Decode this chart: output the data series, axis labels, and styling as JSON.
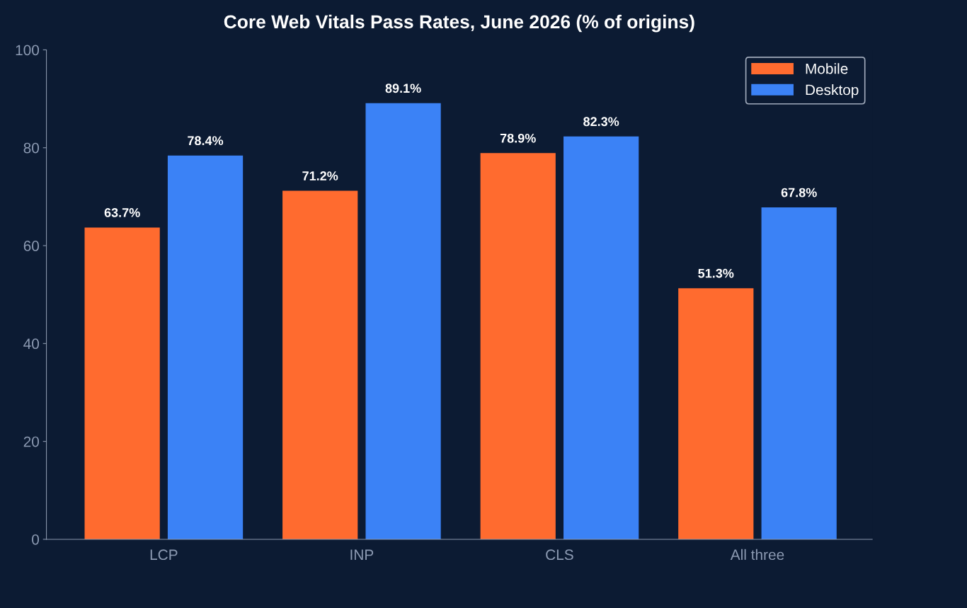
{
  "chart_data": {
    "type": "bar",
    "title": "Core Web Vitals Pass Rates, June 2026 (% of origins)",
    "categories": [
      "LCP",
      "INP",
      "CLS",
      "All three"
    ],
    "series": [
      {
        "name": "Mobile",
        "color": "#ff6b2f",
        "values": [
          63.7,
          71.2,
          78.9,
          51.3
        ],
        "value_labels": [
          "63.7%",
          "71.2%",
          "78.9%",
          "51.3%"
        ]
      },
      {
        "name": "Desktop",
        "color": "#3b82f6",
        "values": [
          78.4,
          89.1,
          82.3,
          67.8
        ],
        "value_labels": [
          "78.4%",
          "89.1%",
          "82.3%",
          "67.8%"
        ]
      }
    ],
    "ylim": [
      0,
      100
    ],
    "yticks": [
      0,
      20,
      40,
      60,
      80,
      100
    ],
    "grid": false,
    "legend": "top right"
  }
}
